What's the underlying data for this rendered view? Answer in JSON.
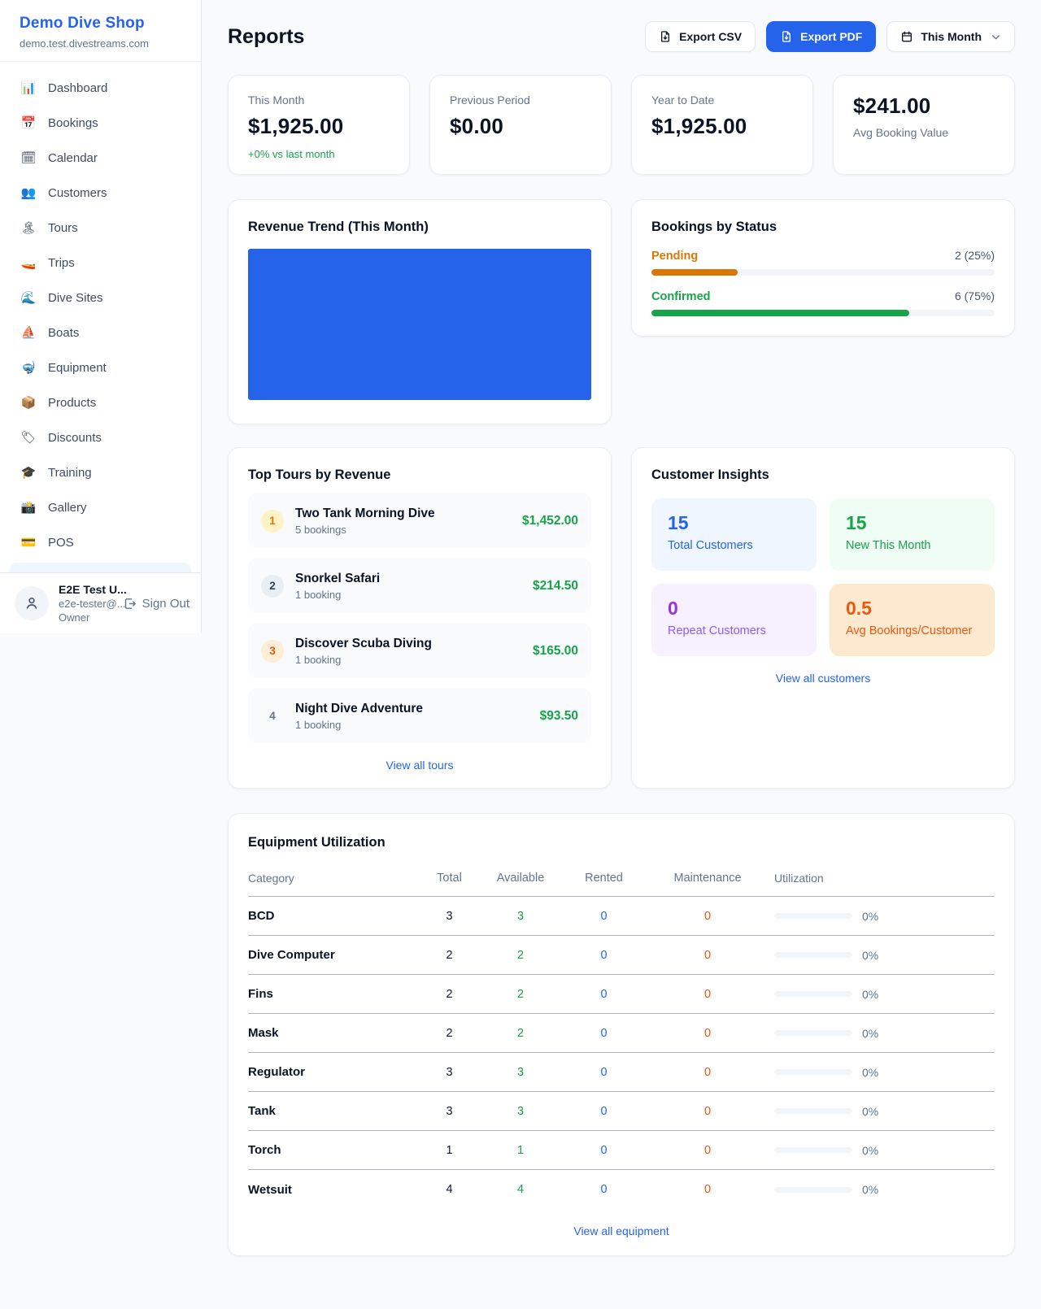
{
  "colors": {
    "accent": "#2563eb",
    "positive_green": "#16a34a",
    "pending_orange": "#d97706",
    "maintenance_orange": "#ea580c",
    "repeat_purple": "#9333ea",
    "chart_fill": "#2563eb"
  },
  "brand": {
    "name": "Demo Dive Shop",
    "domain": "demo.test.divestreams.com"
  },
  "sidebar": {
    "items": [
      {
        "icon": "📊",
        "label": "Dashboard"
      },
      {
        "icon": "📅",
        "label": "Bookings"
      },
      {
        "icon": "🗓",
        "label": "Calendar"
      },
      {
        "icon": "👥",
        "label": "Customers"
      },
      {
        "icon": "🏝",
        "label": "Tours"
      },
      {
        "icon": "🚤",
        "label": "Trips"
      },
      {
        "icon": "🌊",
        "label": "Dive Sites"
      },
      {
        "icon": "⛵",
        "label": "Boats"
      },
      {
        "icon": "🤿",
        "label": "Equipment"
      },
      {
        "icon": "📦",
        "label": "Products"
      },
      {
        "icon": "🏷",
        "label": "Discounts"
      },
      {
        "icon": "🎓",
        "label": "Training"
      },
      {
        "icon": "📸",
        "label": "Gallery"
      },
      {
        "icon": "💳",
        "label": "POS"
      }
    ]
  },
  "user": {
    "name": "E2E Test U...",
    "email": "e2e-tester@...",
    "role": "Owner",
    "sign_out": "Sign Out"
  },
  "header": {
    "title": "Reports",
    "export_csv": "Export CSV",
    "export_pdf": "Export PDF",
    "period": "This Month"
  },
  "stats": [
    {
      "label": "This Month",
      "value": "$1,925.00",
      "delta": "+0% vs last month"
    },
    {
      "label": "Previous Period",
      "value": "$0.00"
    },
    {
      "label": "Year to Date",
      "value": "$1,925.00"
    },
    {
      "label": "Avg Booking Value",
      "value": "$241.00"
    }
  ],
  "revenue_trend": {
    "title": "Revenue Trend (This Month)",
    "fill_color": "#2563eb"
  },
  "bookings_by_status": {
    "title": "Bookings by Status",
    "rows": [
      {
        "label": "Pending",
        "value": "2 (25%)",
        "pct": 25,
        "color": "#d97706"
      },
      {
        "label": "Confirmed",
        "value": "6 (75%)",
        "pct": 75,
        "color": "#16a34a"
      }
    ]
  },
  "top_tours": {
    "title": "Top Tours by Revenue",
    "link": "View all tours",
    "rows": [
      {
        "rank": "1",
        "name": "Two Tank Morning Dive",
        "bookings": "5 bookings",
        "revenue": "$1,452.00"
      },
      {
        "rank": "2",
        "name": "Snorkel Safari",
        "bookings": "1 booking",
        "revenue": "$214.50"
      },
      {
        "rank": "3",
        "name": "Discover Scuba Diving",
        "bookings": "1 booking",
        "revenue": "$165.00"
      },
      {
        "rank": "4",
        "name": "Night Dive Adventure",
        "bookings": "1 booking",
        "revenue": "$93.50"
      }
    ]
  },
  "customer_insights": {
    "title": "Customer Insights",
    "link": "View all customers",
    "tiles": [
      {
        "value": "15",
        "label": "Total Customers"
      },
      {
        "value": "15",
        "label": "New This Month"
      },
      {
        "value": "0",
        "label": "Repeat Customers"
      },
      {
        "value": "0.5",
        "label": "Avg Bookings/Customer"
      }
    ]
  },
  "equipment": {
    "title": "Equipment Utilization",
    "link": "View all equipment",
    "headers": [
      "Category",
      "Total",
      "Available",
      "Rented",
      "Maintenance",
      "Utilization"
    ],
    "rows": [
      {
        "category": "BCD",
        "total": "3",
        "available": "3",
        "rented": "0",
        "maintenance": "0",
        "utilization_pct": 0,
        "utilization": "0%"
      },
      {
        "category": "Dive Computer",
        "total": "2",
        "available": "2",
        "rented": "0",
        "maintenance": "0",
        "utilization_pct": 0,
        "utilization": "0%"
      },
      {
        "category": "Fins",
        "total": "2",
        "available": "2",
        "rented": "0",
        "maintenance": "0",
        "utilization_pct": 0,
        "utilization": "0%"
      },
      {
        "category": "Mask",
        "total": "2",
        "available": "2",
        "rented": "0",
        "maintenance": "0",
        "utilization_pct": 0,
        "utilization": "0%"
      },
      {
        "category": "Regulator",
        "total": "3",
        "available": "3",
        "rented": "0",
        "maintenance": "0",
        "utilization_pct": 0,
        "utilization": "0%"
      },
      {
        "category": "Tank",
        "total": "3",
        "available": "3",
        "rented": "0",
        "maintenance": "0",
        "utilization_pct": 0,
        "utilization": "0%"
      },
      {
        "category": "Torch",
        "total": "1",
        "available": "1",
        "rented": "0",
        "maintenance": "0",
        "utilization_pct": 0,
        "utilization": "0%"
      },
      {
        "category": "Wetsuit",
        "total": "4",
        "available": "4",
        "rented": "0",
        "maintenance": "0",
        "utilization_pct": 0,
        "utilization": "0%"
      }
    ]
  }
}
